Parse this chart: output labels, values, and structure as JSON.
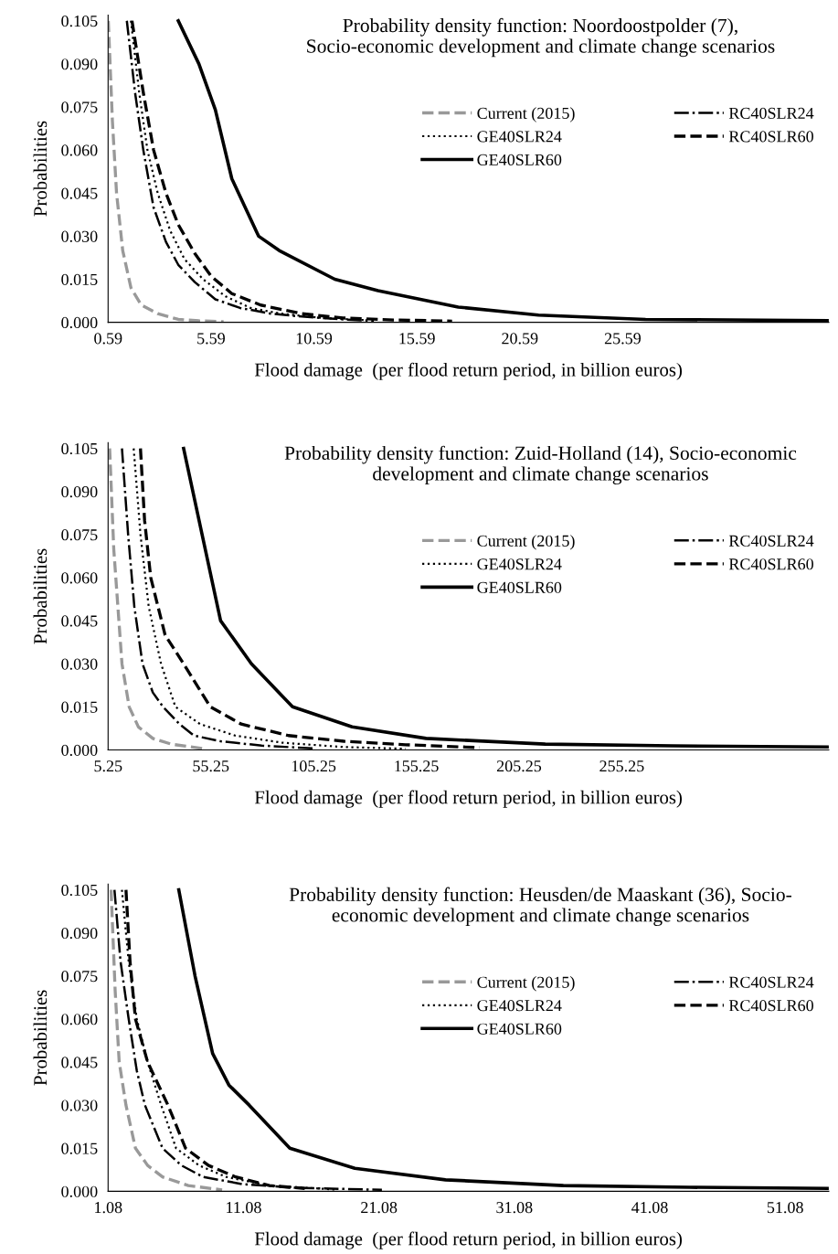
{
  "chart_data": [
    {
      "type": "line",
      "title": "Probability density function: Noordoostpolder (7),\nSocio-economic development and climate change scenarios",
      "xlabel": "Flood damage  (per flood return period, in billion euros)",
      "ylabel": "Probabilities",
      "legend": "right",
      "grid": false,
      "xlim": [
        0.59,
        35.6
      ],
      "xticks": [
        0.59,
        5.59,
        10.59,
        15.59,
        20.59,
        25.59
      ],
      "ylim": [
        0,
        0.107
      ],
      "yticks": [
        {
          "value": 0,
          "label": "0.000"
        },
        {
          "value": 0.015,
          "label": "0.015"
        },
        {
          "value": 0.03,
          "label": "0.030"
        },
        {
          "value": 0.045,
          "label": "0.045"
        },
        {
          "value": 0.06,
          "label": "0.060"
        },
        {
          "value": 0.075,
          "label": "0.075"
        },
        {
          "value": 0.09,
          "label": "0.090"
        },
        {
          "value": 0.105,
          "label": "0.105"
        }
      ],
      "series": [
        {
          "name": "Current (2015)",
          "color": "#999999",
          "line_style": "dashed",
          "x": [
            0.6,
            0.8,
            1.0,
            1.3,
            1.7,
            2.2,
            3.0,
            4.0,
            5.0,
            6.2
          ],
          "values": [
            0.105,
            0.07,
            0.045,
            0.025,
            0.012,
            0.006,
            0.003,
            0.001,
            0.0005,
            0.0002
          ]
        },
        {
          "name": "GE40SLR24",
          "color": "#000000",
          "line_style": "dotted",
          "x": [
            1.7,
            2.1,
            2.5,
            3.0,
            3.6,
            4.3,
            5.2,
            6.3,
            7.5,
            9,
            11,
            13
          ],
          "values": [
            0.105,
            0.08,
            0.06,
            0.045,
            0.032,
            0.022,
            0.015,
            0.009,
            0.005,
            0.003,
            0.0015,
            0.0008
          ]
        },
        {
          "name": "GE40SLR60",
          "color": "#000000",
          "line_style": "solid",
          "x": [
            4.0,
            5.0,
            5.8,
            6.6,
            7.9,
            8.9,
            11.6,
            13.7,
            17.6,
            21.5,
            26.7,
            35.6
          ],
          "values": [
            0.105,
            0.09,
            0.074,
            0.05,
            0.03,
            0.025,
            0.015,
            0.011,
            0.0053,
            0.0025,
            0.001,
            0.0006
          ]
        },
        {
          "name": "RC40SLR24",
          "color": "#000000",
          "line_style": "dashdot",
          "x": [
            1.5,
            1.9,
            2.3,
            2.8,
            3.4,
            4.0,
            4.8,
            5.8,
            7,
            8.5,
            10,
            12,
            13.5
          ],
          "values": [
            0.105,
            0.08,
            0.06,
            0.04,
            0.028,
            0.02,
            0.014,
            0.008,
            0.005,
            0.003,
            0.002,
            0.001,
            0.0005
          ]
        },
        {
          "name": "RC40SLR60",
          "color": "#000000",
          "line_style": "dashed",
          "x": [
            1.75,
            2.3,
            2.8,
            3.4,
            4.0,
            4.8,
            5.6,
            6.6,
            8,
            10,
            12,
            14.5,
            17.3
          ],
          "values": [
            0.105,
            0.08,
            0.06,
            0.045,
            0.034,
            0.024,
            0.016,
            0.01,
            0.006,
            0.003,
            0.0015,
            0.0008,
            0.0004
          ]
        }
      ]
    },
    {
      "type": "line",
      "title": "Probability density function: Zuid-Holland (14), Socio-economic\ndevelopment and climate change scenarios",
      "xlabel": "Flood damage  (per flood return period, in billion euros)",
      "ylabel": "Probabilities",
      "legend": "right",
      "grid": false,
      "xlim": [
        5.25,
        356
      ],
      "xticks": [
        5.25,
        55.25,
        105.25,
        155.25,
        205.25,
        255.25
      ],
      "ylim": [
        0,
        0.107
      ],
      "yticks": [
        {
          "value": 0,
          "label": "0.000"
        },
        {
          "value": 0.015,
          "label": "0.015"
        },
        {
          "value": 0.03,
          "label": "0.030"
        },
        {
          "value": 0.045,
          "label": "0.045"
        },
        {
          "value": 0.06,
          "label": "0.060"
        },
        {
          "value": 0.075,
          "label": "0.075"
        },
        {
          "value": 0.09,
          "label": "0.090"
        },
        {
          "value": 0.105,
          "label": "0.105"
        }
      ],
      "series": [
        {
          "name": "Current (2015)",
          "color": "#999999",
          "line_style": "dashed",
          "x": [
            6,
            8,
            10,
            12,
            15.5,
            20,
            27,
            36,
            51
          ],
          "values": [
            0.105,
            0.07,
            0.05,
            0.03,
            0.015,
            0.008,
            0.004,
            0.002,
            0.0005
          ]
        },
        {
          "name": "GE40SLR24",
          "color": "#000000",
          "line_style": "dotted",
          "x": [
            17.7,
            21,
            25,
            31,
            38,
            50,
            67,
            90,
            120,
            150
          ],
          "values": [
            0.105,
            0.075,
            0.05,
            0.03,
            0.015,
            0.009,
            0.005,
            0.0025,
            0.001,
            0.0004
          ]
        },
        {
          "name": "GE40SLR60",
          "color": "#000000",
          "line_style": "solid",
          "x": [
            42,
            51,
            60,
            75,
            95,
            124,
            160,
            218,
            280,
            356
          ],
          "values": [
            0.105,
            0.075,
            0.045,
            0.03,
            0.015,
            0.008,
            0.004,
            0.002,
            0.0014,
            0.001
          ]
        },
        {
          "name": "RC40SLR24",
          "color": "#000000",
          "line_style": "dashdot",
          "x": [
            12,
            15,
            18,
            22,
            27,
            32,
            40,
            47,
            60,
            80,
            105
          ],
          "values": [
            0.105,
            0.075,
            0.05,
            0.03,
            0.02,
            0.015,
            0.009,
            0.005,
            0.003,
            0.0015,
            0.0005
          ]
        },
        {
          "name": "RC40SLR60",
          "color": "#000000",
          "line_style": "dashed",
          "x": [
            21,
            23,
            26,
            33,
            42,
            55,
            70,
            93,
            120,
            150,
            186
          ],
          "values": [
            0.105,
            0.08,
            0.06,
            0.04,
            0.03,
            0.015,
            0.009,
            0.005,
            0.003,
            0.0018,
            0.0008
          ]
        }
      ]
    },
    {
      "type": "line",
      "title": "Probability density function: Heusden/de Maaskant (36), Socio-\neconomic development and climate change scenarios",
      "xlabel": "Flood damage  (per flood return period, in billion euros)",
      "ylabel": "Probabilities",
      "legend": "right",
      "grid": false,
      "xlim": [
        1.08,
        54.3
      ],
      "xticks": [
        1.08,
        11.08,
        21.08,
        31.08,
        41.08,
        51.08
      ],
      "ylim": [
        0,
        0.107
      ],
      "yticks": [
        {
          "value": 0,
          "label": "0.000"
        },
        {
          "value": 0.015,
          "label": "0.015"
        },
        {
          "value": 0.03,
          "label": "0.030"
        },
        {
          "value": 0.045,
          "label": "0.045"
        },
        {
          "value": 0.06,
          "label": "0.060"
        },
        {
          "value": 0.075,
          "label": "0.075"
        },
        {
          "value": 0.09,
          "label": "0.090"
        },
        {
          "value": 0.105,
          "label": "0.105"
        }
      ],
      "series": [
        {
          "name": "Current (2015)",
          "color": "#999999",
          "line_style": "dashed",
          "x": [
            1.3,
            1.6,
            1.9,
            2.4,
            3.1,
            4.0,
            5.1,
            7,
            9.5
          ],
          "values": [
            0.105,
            0.07,
            0.045,
            0.03,
            0.015,
            0.009,
            0.005,
            0.002,
            0.0005
          ]
        },
        {
          "name": "GE40SLR24",
          "color": "#000000",
          "line_style": "dotted",
          "x": [
            2.1,
            2.6,
            3.2,
            4.0,
            5.0,
            6.1,
            7.8,
            9.8,
            13,
            17.9
          ],
          "values": [
            0.105,
            0.08,
            0.06,
            0.045,
            0.03,
            0.015,
            0.009,
            0.005,
            0.002,
            0.0006
          ]
        },
        {
          "name": "GE40SLR60",
          "color": "#000000",
          "line_style": "solid",
          "x": [
            6.3,
            7.5,
            8.8,
            10,
            11.5,
            14.5,
            19.3,
            26,
            34.7,
            44,
            54.3
          ],
          "values": [
            0.105,
            0.075,
            0.048,
            0.037,
            0.03,
            0.015,
            0.008,
            0.004,
            0.002,
            0.0014,
            0.001
          ]
        },
        {
          "name": "RC40SLR24",
          "color": "#000000",
          "line_style": "dashdot",
          "x": [
            1.55,
            2.0,
            2.6,
            3.2,
            3.8,
            5.1,
            6.5,
            8.1,
            11,
            15,
            21.3
          ],
          "values": [
            0.105,
            0.08,
            0.06,
            0.042,
            0.03,
            0.015,
            0.009,
            0.005,
            0.0025,
            0.0012,
            0.0005
          ]
        },
        {
          "name": "RC40SLR60",
          "color": "#000000",
          "line_style": "dashed",
          "x": [
            2.4,
            2.7,
            3.1,
            4.0,
            5.5,
            6.8,
            8.5,
            10.5,
            13,
            15.6
          ],
          "values": [
            0.105,
            0.08,
            0.06,
            0.045,
            0.03,
            0.015,
            0.009,
            0.005,
            0.002,
            0.001
          ]
        }
      ]
    }
  ]
}
